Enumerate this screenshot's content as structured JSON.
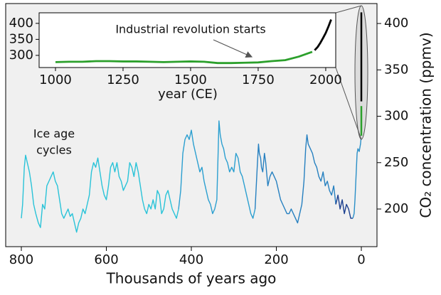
{
  "chart_data": [
    {
      "type": "line",
      "xlabel": "Thousands of years ago",
      "ylabel": "CO₂ concentration (ppmv)",
      "annotation_lines": [
        "Ice age",
        "cycles"
      ],
      "xlim": [
        836.8,
        -36.8
      ],
      "xticks": [
        800,
        600,
        400,
        200,
        0
      ],
      "ylim": [
        159.4,
        421.5
      ],
      "yticks": [
        200,
        250,
        300,
        350,
        400
      ],
      "series": [
        {
          "color": "#29c3d8",
          "x": [
            800,
            797,
            793,
            790,
            786,
            781,
            776,
            771,
            766,
            760,
            755,
            750,
            745,
            740,
            735,
            730,
            725,
            720,
            715,
            710,
            705,
            700,
            695,
            690,
            685,
            680,
            675,
            670,
            665,
            660,
            655,
            650,
            645,
            640,
            635,
            630,
            625,
            620,
            615,
            610,
            605,
            600,
            595,
            590,
            585,
            580,
            575,
            570,
            565,
            560,
            555,
            550,
            545,
            540,
            535,
            530,
            525,
            520,
            515,
            510,
            505,
            500,
            495,
            490,
            485,
            480,
            475,
            470,
            465,
            460,
            455,
            450,
            445,
            440,
            435,
            430
          ],
          "values": [
            190,
            205,
            245,
            258,
            250,
            240,
            225,
            205,
            195,
            185,
            180,
            205,
            200,
            225,
            230,
            235,
            240,
            230,
            225,
            210,
            195,
            190,
            195,
            200,
            192,
            195,
            185,
            175,
            185,
            190,
            200,
            195,
            205,
            215,
            240,
            250,
            245,
            255,
            240,
            225,
            215,
            210,
            225,
            245,
            250,
            240,
            250,
            235,
            230,
            220,
            225,
            230,
            250,
            245,
            235,
            250,
            240,
            225,
            210,
            200,
            195,
            205,
            200,
            210,
            200,
            220,
            215,
            195,
            200,
            215,
            220,
            210,
            200,
            195,
            190,
            200
          ]
        },
        {
          "color": "#2b9fd0",
          "x": [
            430,
            425,
            420,
            415,
            410,
            405,
            400,
            395,
            390,
            385,
            380,
            375,
            370,
            365,
            360,
            355,
            350,
            345,
            340,
            337,
            335,
            332,
            328,
            324,
            320,
            315,
            310,
            305,
            300,
            295,
            290,
            285,
            280,
            275,
            270,
            265,
            260,
            255,
            250
          ],
          "values": [
            200,
            220,
            260,
            275,
            280,
            275,
            285,
            270,
            260,
            250,
            240,
            245,
            230,
            220,
            210,
            205,
            195,
            200,
            210,
            260,
            295,
            280,
            270,
            265,
            255,
            250,
            240,
            245,
            240,
            260,
            255,
            240,
            235,
            225,
            215,
            205,
            195,
            190,
            200
          ]
        },
        {
          "color": "#2680c0",
          "x": [
            250,
            245,
            242,
            240,
            237,
            235,
            232,
            228,
            225,
            220,
            215,
            210,
            205,
            200,
            195,
            190,
            185,
            180,
            175,
            170,
            165,
            160,
            155,
            150,
            145,
            140,
            135,
            131,
            128,
            125,
            120,
            115,
            110,
            105,
            100,
            95,
            90,
            85,
            80,
            75,
            70,
            65,
            60
          ],
          "values": [
            200,
            245,
            270,
            260,
            255,
            245,
            240,
            260,
            250,
            225,
            235,
            240,
            235,
            230,
            220,
            210,
            205,
            200,
            195,
            195,
            200,
            195,
            190,
            185,
            195,
            205,
            230,
            265,
            280,
            270,
            265,
            260,
            250,
            245,
            235,
            230,
            240,
            225,
            230,
            220,
            215,
            225,
            205
          ]
        },
        {
          "color": "#1b3f8f",
          "x": [
            60,
            55,
            50,
            45,
            40,
            35,
            30,
            25,
            20
          ],
          "values": [
            205,
            215,
            200,
            210,
            195,
            205,
            200,
            190,
            190
          ]
        },
        {
          "color": "#2a8fc7",
          "x": [
            20,
            17,
            15,
            12,
            10,
            8,
            5,
            2,
            0.3
          ],
          "values": [
            190,
            195,
            210,
            240,
            260,
            265,
            262,
            270,
            278
          ]
        }
      ]
    },
    {
      "type": "line",
      "xlabel": "year (CE)",
      "annotation": "Industrial revolution starts",
      "xlim": [
        939.5,
        2037
      ],
      "xticks": [
        1000,
        1250,
        1500,
        1750,
        2000
      ],
      "ylim": [
        262,
        433
      ],
      "yticks": [
        300,
        350,
        400
      ],
      "series": [
        {
          "color": "#2ca02c",
          "x": [
            1000,
            1050,
            1100,
            1150,
            1200,
            1250,
            1300,
            1350,
            1400,
            1450,
            1500,
            1550,
            1600,
            1650,
            1700,
            1750,
            1800,
            1850,
            1900,
            1950
          ],
          "values": [
            279,
            280,
            280,
            282,
            282,
            281,
            281,
            280,
            279,
            280,
            281,
            280,
            276,
            276,
            277,
            278,
            282,
            285,
            296,
            311
          ]
        },
        {
          "color": "#000000",
          "x": [
            1959,
            1970,
            1980,
            1990,
            2000,
            2010,
            2020
          ],
          "values": [
            316,
            326,
            339,
            354,
            370,
            390,
            412
          ]
        }
      ]
    }
  ]
}
